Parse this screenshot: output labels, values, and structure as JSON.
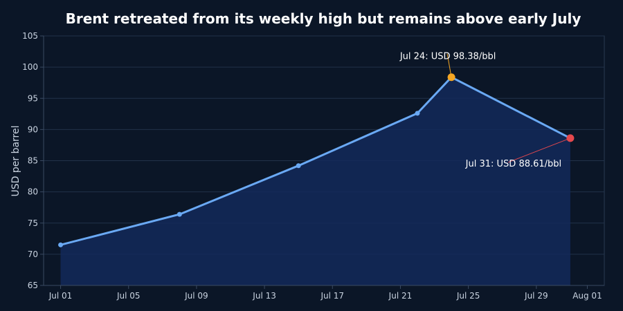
{
  "chart_data": {
    "type": "line",
    "title": "Brent retreated from its weekly high but remains above early July",
    "xlabel": "",
    "ylabel": "USD per barrel",
    "x": [
      "2024-07-01",
      "2024-07-08",
      "2024-07-15",
      "2024-07-22",
      "2024-07-24",
      "2024-07-31"
    ],
    "y": [
      71.5,
      76.4,
      84.2,
      92.6,
      98.38,
      88.61
    ],
    "ylim": [
      65,
      105
    ],
    "xlim": [
      "2024-06-30",
      "2024-08-02"
    ],
    "y_ticks": [
      65,
      70,
      75,
      80,
      85,
      90,
      95,
      100,
      105
    ],
    "x_ticks": [
      {
        "date": "2024-07-01",
        "label": "Jul 01"
      },
      {
        "date": "2024-07-05",
        "label": "Jul 05"
      },
      {
        "date": "2024-07-09",
        "label": "Jul 09"
      },
      {
        "date": "2024-07-13",
        "label": "Jul 13"
      },
      {
        "date": "2024-07-17",
        "label": "Jul 17"
      },
      {
        "date": "2024-07-21",
        "label": "Jul 21"
      },
      {
        "date": "2024-07-25",
        "label": "Jul 25"
      },
      {
        "date": "2024-07-29",
        "label": "Jul 29"
      },
      {
        "date": "2024-08-01",
        "label": "Aug 01"
      }
    ],
    "grid": true,
    "annotations": [
      {
        "date": "2024-07-24",
        "value": 98.38,
        "text": "Jul 24: USD 98.38/bbl",
        "color": "#f5a623"
      },
      {
        "date": "2024-07-31",
        "value": 88.61,
        "text": "Jul 31: USD 88.61/bbl",
        "color": "#e5484d"
      }
    ],
    "colors": {
      "line": "#6aa9f4",
      "area": "#13295a",
      "background": "#0b1627"
    }
  }
}
